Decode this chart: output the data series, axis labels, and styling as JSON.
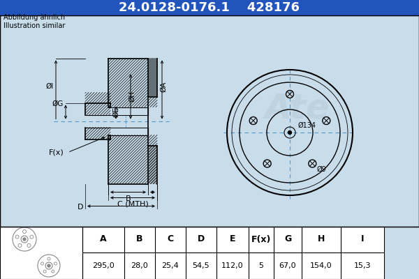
{
  "title_part_number": "24.0128-0176.1",
  "title_ref_number": "428176",
  "subtitle1": "Abbildung ähnlich",
  "subtitle2": "Illustration similar",
  "bg_color": "#c8dcea",
  "header_bg": "#2255bb",
  "header_text_color": "#ffffff",
  "table_headers": [
    "A",
    "B",
    "C",
    "D",
    "E",
    "F(x)",
    "G",
    "H",
    "I"
  ],
  "table_values": [
    "295,0",
    "28,0",
    "25,4",
    "54,5",
    "112,0",
    "5",
    "67,0",
    "154,0",
    "15,3"
  ],
  "dim_label_134": "Ø134",
  "dim_label_9": "Ø9",
  "dim_A": "ØA",
  "dim_H": "ØH",
  "dim_E": "ØE",
  "dim_G": "ØG",
  "dim_I": "ØI",
  "label_B": "B",
  "label_C": "C (MTH)",
  "label_D": "D",
  "label_F": "F(x)"
}
